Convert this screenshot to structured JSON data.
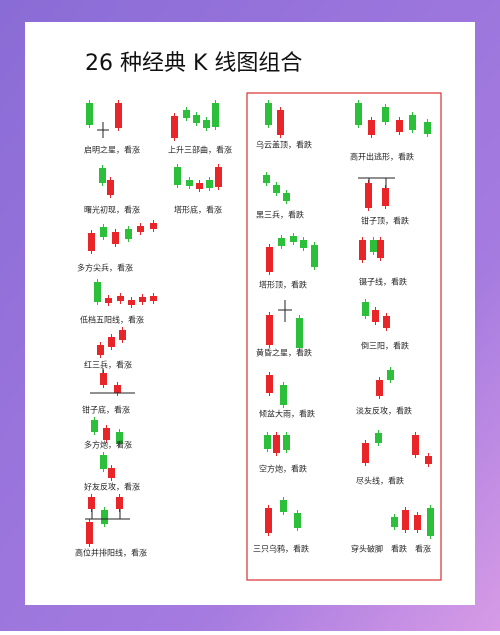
{
  "title": "26 种经典 K 线图组合",
  "patterns": [
    {
      "label": "启明之星，看涨"
    },
    {
      "label": "上升三部曲，看涨"
    },
    {
      "label": "曙光初现，看涨"
    },
    {
      "label": "塔形底，看涨"
    },
    {
      "label": "多方尖兵，看涨"
    },
    {
      "label": "低档五阳线，看涨"
    },
    {
      "label": "红三兵，看涨"
    },
    {
      "label": "钳子底，看涨"
    },
    {
      "label": "多方炮，看涨"
    },
    {
      "label": "好友反攻，看涨"
    },
    {
      "label": "高位并排阳线，看涨"
    },
    {
      "label": "乌云盖顶，看跌"
    },
    {
      "label": "高开出逃形，看跌"
    },
    {
      "label": "黑三兵，看跌"
    },
    {
      "label": "钳子顶，看跌"
    },
    {
      "label": "塔形顶，看跌"
    },
    {
      "label": "镊子线，看跌"
    },
    {
      "label": "黄昏之星，看跌"
    },
    {
      "label": "倒三阳，看跌"
    },
    {
      "label": "倾盆大雨，看跌"
    },
    {
      "label": "淡友反攻，看跌"
    },
    {
      "label": "空方炮，看跌"
    },
    {
      "label": "尽头线，看跌"
    },
    {
      "label": "三只乌鸦，看跌"
    },
    {
      "label": "穿头破脚　看跌　看涨"
    }
  ]
}
